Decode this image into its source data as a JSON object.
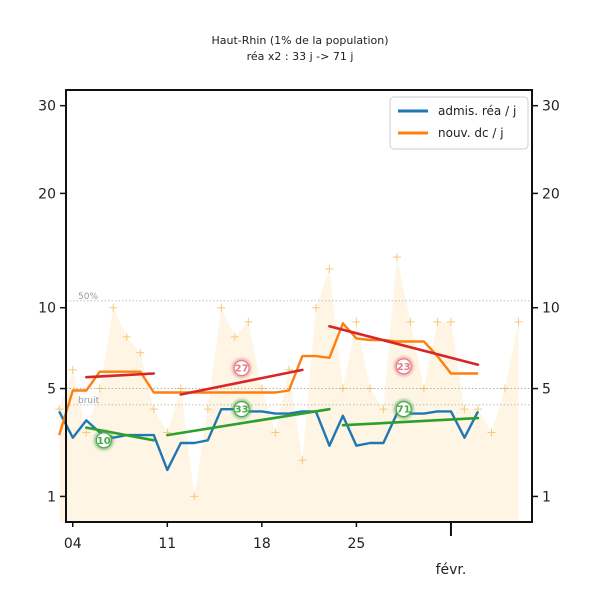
{
  "chart_data": {
    "type": "line",
    "title": "Haut-Rhin (1% de la population)",
    "subtitle": "réa x2 : 33 j -> 71 j",
    "x_tick_labels": [
      "04",
      "11",
      "18",
      "25",
      "févr."
    ],
    "x_tick_days": [
      4,
      11,
      18,
      25,
      32
    ],
    "x_range": [
      3.5,
      38
    ],
    "y_scale": "sqrt",
    "y_range": [
      0.5,
      32
    ],
    "y_ticks": [
      1,
      5,
      10,
      20,
      30
    ],
    "legend_position": "top-right",
    "series": [
      {
        "name": "admis. réa / j",
        "color": "#1f77b4",
        "x": [
          3,
          4,
          5,
          6,
          7,
          8,
          9,
          10,
          11,
          12,
          13,
          14,
          15,
          16,
          17,
          18,
          19,
          20,
          21,
          22,
          23,
          24,
          25,
          26,
          27,
          28,
          29,
          30,
          31,
          32,
          33,
          34
        ],
        "values": [
          3.9,
          2.8,
          3.5,
          3.0,
          2.8,
          2.9,
          2.9,
          2.9,
          1.7,
          2.6,
          2.6,
          2.7,
          4.0,
          4.0,
          3.9,
          3.9,
          3.8,
          3.8,
          3.9,
          3.9,
          2.5,
          3.7,
          2.5,
          2.6,
          2.6,
          3.8,
          3.8,
          3.8,
          3.9,
          3.9,
          2.8,
          3.9
        ]
      },
      {
        "name": "nouv. dc / j",
        "color": "#ff7f0e",
        "x": [
          3,
          4,
          5,
          6,
          7,
          8,
          9,
          10,
          11,
          12,
          13,
          14,
          15,
          16,
          17,
          18,
          19,
          20,
          21,
          22,
          23,
          24,
          25,
          26,
          27,
          28,
          29,
          30,
          31,
          32,
          33,
          34
        ],
        "values": [
          2.9,
          4.9,
          4.9,
          5.9,
          5.9,
          5.9,
          5.9,
          4.8,
          4.8,
          4.8,
          4.8,
          4.8,
          4.8,
          4.8,
          4.8,
          4.8,
          4.8,
          4.9,
          6.8,
          6.8,
          6.7,
          8.9,
          7.9,
          7.8,
          7.8,
          7.7,
          7.7,
          7.7,
          6.8,
          5.8,
          5.8,
          5.8
        ]
      }
    ],
    "trend_segments": [
      {
        "color": "#d62728",
        "x": [
          5,
          10
        ],
        "values": [
          5.6,
          5.8
        ]
      },
      {
        "color": "#2ca02c",
        "x": [
          5,
          10
        ],
        "values": [
          3.2,
          2.7
        ]
      },
      {
        "color": "#d62728",
        "x": [
          12,
          21
        ],
        "values": [
          4.7,
          6.0
        ]
      },
      {
        "color": "#2ca02c",
        "x": [
          11,
          23
        ],
        "values": [
          2.9,
          4.0
        ]
      },
      {
        "color": "#d62728",
        "x": [
          23,
          34
        ],
        "values": [
          8.7,
          6.3
        ]
      },
      {
        "color": "#2ca02c",
        "x": [
          24,
          34
        ],
        "values": [
          3.3,
          3.6
        ]
      }
    ],
    "bubbles": [
      {
        "label": "27",
        "x": 16.5,
        "y": 6.1,
        "color": "#e87a85"
      },
      {
        "label": "23",
        "x": 28.5,
        "y": 6.2,
        "color": "#e87a85"
      },
      {
        "label": "33",
        "x": 16.5,
        "y": 4.0,
        "color": "#4aa84a"
      },
      {
        "label": "71",
        "x": 28.5,
        "y": 4.0,
        "color": "#4aa84a"
      },
      {
        "label": "10",
        "x": 6.3,
        "y": 2.7,
        "color": "#4aa84a"
      }
    ],
    "raw_points": {
      "x": [
        3,
        4,
        5,
        6,
        7,
        8,
        9,
        10,
        11,
        12,
        13,
        14,
        15,
        16,
        17,
        18,
        19,
        20,
        21,
        22,
        23,
        24,
        25,
        26,
        27,
        28,
        29,
        30,
        31,
        32,
        33,
        34,
        35,
        36,
        37
      ],
      "values": [
        4,
        6,
        3,
        5,
        10,
        8,
        7,
        4,
        3,
        5,
        1,
        4,
        10,
        8,
        9,
        5,
        3,
        6,
        2,
        10,
        13,
        5,
        9,
        5,
        4,
        14,
        9,
        5,
        9,
        9,
        4,
        4,
        3,
        5,
        9
      ]
    },
    "reference_lines": [
      {
        "label": "50%",
        "y": 10.5
      },
      {
        "label": "bruit",
        "y": 4.2
      }
    ],
    "baseline_line": {
      "y": 5
    }
  }
}
